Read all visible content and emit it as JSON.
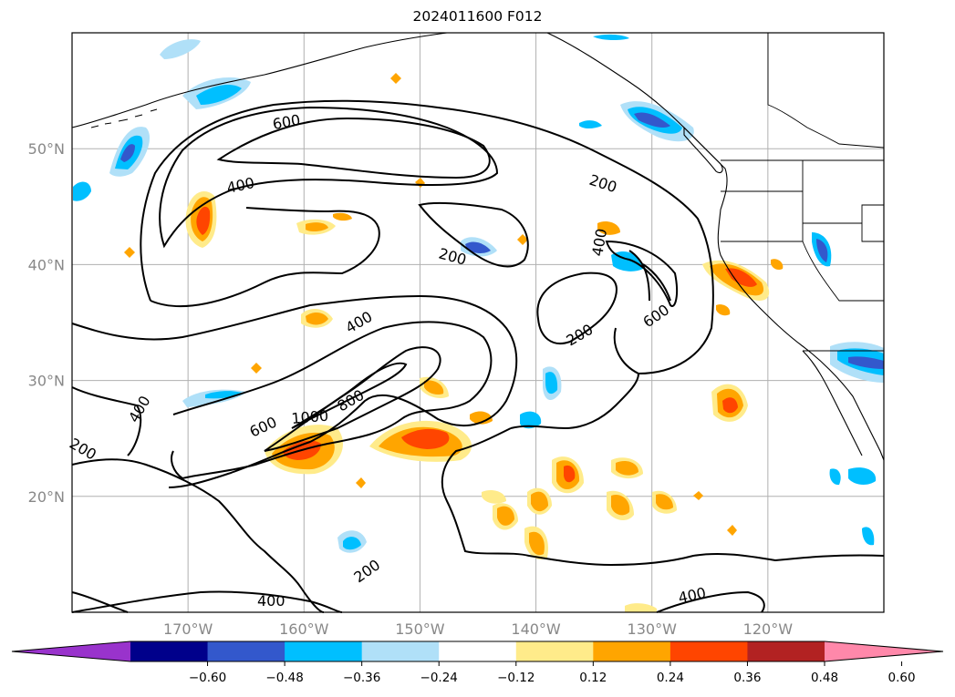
{
  "title": "2024011600 F012",
  "map": {
    "lat_labels": [
      {
        "text": "50°N",
        "lat": 50
      },
      {
        "text": "40°N",
        "lat": 40
      },
      {
        "text": "30°N",
        "lat": 30
      },
      {
        "text": "20°N",
        "lat": 20
      }
    ],
    "lon_labels": [
      {
        "text": "170°W",
        "lon": -170
      },
      {
        "text": "160°W",
        "lon": -160
      },
      {
        "text": "150°W",
        "lon": -150
      },
      {
        "text": "140°W",
        "lon": -140
      },
      {
        "text": "130°W",
        "lon": -130
      },
      {
        "text": "120°W",
        "lon": -120
      }
    ],
    "extent": {
      "lon_min": -180,
      "lon_max": -110,
      "lat_min": 10,
      "lat_max": 60
    },
    "gridlines": true,
    "contour_labels": [
      "600",
      "400",
      "200",
      "200",
      "400",
      "200",
      "600",
      "400",
      "800",
      "1000",
      "600",
      "400",
      "200",
      "200",
      "400",
      "400"
    ]
  },
  "colorbar": {
    "labels": [
      "−0.60",
      "−0.48",
      "−0.36",
      "−0.24",
      "−0.12",
      "0.12",
      "0.24",
      "0.36",
      "0.48",
      "0.60"
    ],
    "colors": [
      "#9933cc",
      "#00008b",
      "#3358cc",
      "#00bfff",
      "#b0e0f8",
      "#ffffff",
      "#ffeb8a",
      "#ffa500",
      "#ff4500",
      "#b22222",
      "#ff88aa"
    ]
  }
}
